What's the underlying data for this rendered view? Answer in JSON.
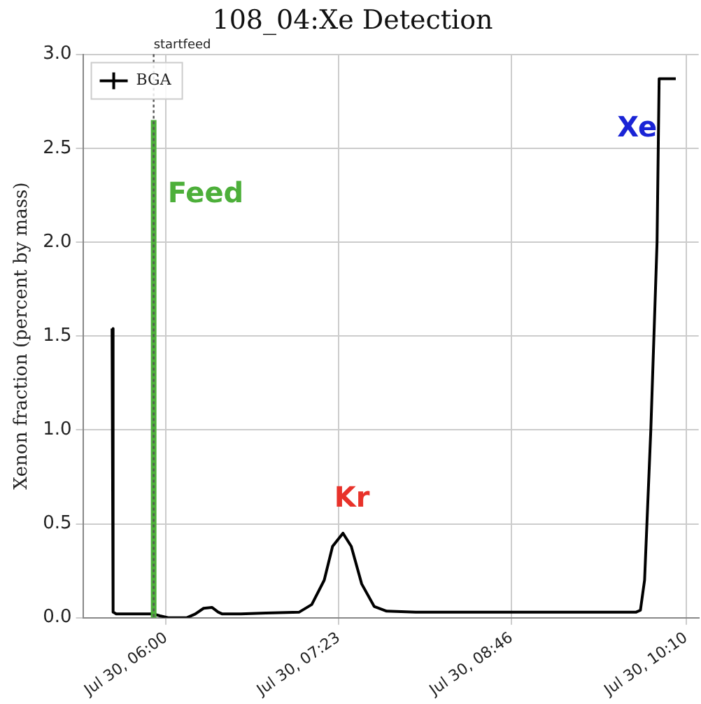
{
  "chart_data": {
    "type": "line",
    "title": "108_04:Xe Detection",
    "ylabel": "Xenon fraction (percent by mass)",
    "x": [
      "--07-30T05:34",
      "--07-30T05:34:30",
      "--07-30T05:36",
      "--07-30T05:45",
      "--07-30T05:54",
      "--07-30T05:57",
      "--07-30T06:01",
      "--07-30T06:10",
      "--07-30T06:14",
      "--07-30T06:18",
      "--07-30T06:22",
      "--07-30T06:25",
      "--07-30T06:27",
      "--07-30T06:36",
      "--07-30T06:48",
      "--07-30T07:04",
      "--07-30T07:10",
      "--07-30T07:16",
      "--07-30T07:20",
      "--07-30T07:25",
      "--07-30T07:29",
      "--07-30T07:34",
      "--07-30T07:40",
      "--07-30T07:46",
      "--07-30T08:00",
      "--07-30T08:30",
      "--07-30T09:00",
      "--07-30T09:30",
      "--07-30T09:46",
      "--07-30T09:48",
      "--07-30T09:50",
      "--07-30T09:53",
      "--07-30T09:56",
      "--07-30T09:57",
      "--07-30T10:05"
    ],
    "series": [
      {
        "name": "BGA",
        "color": "#000000",
        "values": [
          1.54,
          0.03,
          0.02,
          0.02,
          0.02,
          0.01,
          0.0,
          0.0,
          0.02,
          0.05,
          0.055,
          0.03,
          0.02,
          0.02,
          0.025,
          0.03,
          0.07,
          0.2,
          0.38,
          0.45,
          0.38,
          0.18,
          0.06,
          0.035,
          0.03,
          0.03,
          0.03,
          0.03,
          0.03,
          0.04,
          0.2,
          1.0,
          2.0,
          2.87,
          2.87
        ]
      },
      {
        "name": "Feed",
        "type": "line",
        "color": "#4daf3a",
        "x": [
          "--07-30T05:54",
          "--07-30T05:54"
        ],
        "values": [
          0,
          2.65
        ]
      }
    ],
    "xlim": [
      "--07-30T05:20",
      "--07-30T10:16"
    ],
    "xticks": [
      {
        "value": "--07-30T06:00",
        "label": "Jul 30, 06:00"
      },
      {
        "value": "--07-30T07:23",
        "label": "Jul 30, 07:23"
      },
      {
        "value": "--07-30T08:46",
        "label": "Jul 30, 08:46"
      },
      {
        "value": "--07-30T10:10",
        "label": "Jul 30, 10:10"
      }
    ],
    "ylim": [
      0,
      3
    ],
    "yticks": [
      {
        "value": 0,
        "label": "0.0"
      },
      {
        "value": 0.5,
        "label": "0.5"
      },
      {
        "value": 1,
        "label": "1.0"
      },
      {
        "value": 1.5,
        "label": "1.5"
      },
      {
        "value": 2,
        "label": "2.0"
      },
      {
        "value": 2.5,
        "label": "2.5"
      },
      {
        "value": 3,
        "label": "3.0"
      }
    ],
    "ref_lines": [
      {
        "axis": "x",
        "value": "--07-30T05:54",
        "label": "startfeed",
        "color": "#555555",
        "line_style": "dotted"
      }
    ],
    "annotations": [
      "Kr",
      "Xe"
    ],
    "grid": true,
    "legend": "top left"
  }
}
